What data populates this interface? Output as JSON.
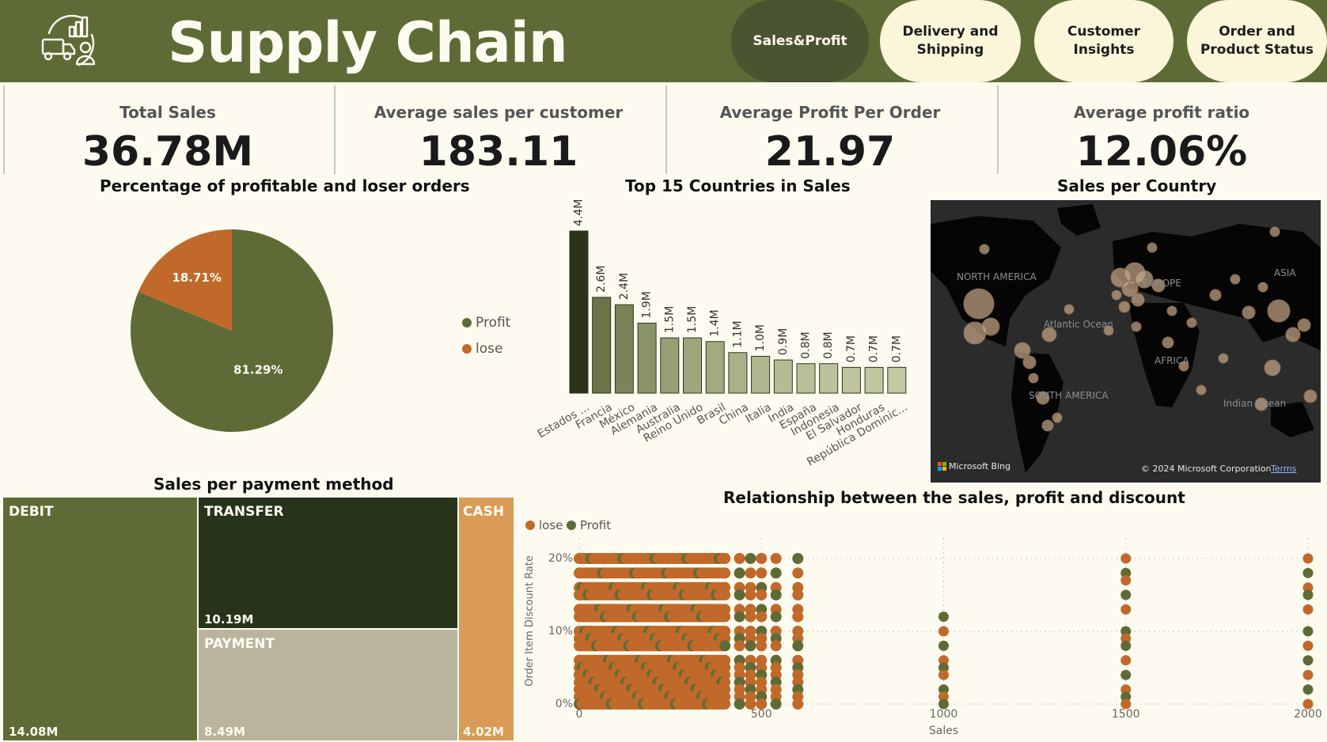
{
  "header": {
    "title": "Supply Chain",
    "nav": [
      {
        "label": "Sales&Profit",
        "active": true
      },
      {
        "label": "Delivery and\nShipping",
        "active": false
      },
      {
        "label": "Customer\nInsights",
        "active": false
      },
      {
        "label": "Order and\nProduct Status",
        "active": false
      }
    ],
    "logo_icon": "delivery-truck-chart-person-icon"
  },
  "kpis": [
    {
      "label": "Total Sales",
      "value": "36.78M"
    },
    {
      "label": "Average sales per customer",
      "value": "183.11"
    },
    {
      "label": "Average Profit Per Order",
      "value": "21.97"
    },
    {
      "label": "Average profit ratio",
      "value": "12.06%"
    }
  ],
  "colors": {
    "header_bg": "#5f6b36",
    "profit": "#5f6b36",
    "lose": "#c0692a",
    "nav_active": "#4b5430",
    "nav_inactive": "#fbf5da",
    "page_bg": "#fdfbf0"
  },
  "chart_data": [
    {
      "id": "pie",
      "type": "pie",
      "title": "Percentage of profitable and loser orders",
      "slices": [
        {
          "name": "Profit",
          "value": 81.29,
          "label": "81.29%",
          "color": "#5f6b36"
        },
        {
          "name": "lose",
          "value": 18.71,
          "label": "18.71%",
          "color": "#c0692a"
        }
      ],
      "legend": [
        "Profit",
        "lose"
      ],
      "legend_position": "right"
    },
    {
      "id": "bar",
      "type": "bar",
      "title": "Top 15 Countries in Sales",
      "categories": [
        "Estados ...",
        "Francia",
        "México",
        "Alemania",
        "Australia",
        "Reino Unido",
        "Brasil",
        "China",
        "Italia",
        "India",
        "España",
        "Indonesia",
        "El Salvador",
        "Honduras",
        "República Dominic..."
      ],
      "values": [
        4.4,
        2.6,
        2.4,
        1.9,
        1.5,
        1.5,
        1.4,
        1.1,
        1.0,
        0.9,
        0.8,
        0.8,
        0.7,
        0.7,
        0.7
      ],
      "labels": [
        "4.4M",
        "2.6M",
        "2.4M",
        "1.9M",
        "1.5M",
        "1.5M",
        "1.4M",
        "1.1M",
        "1.0M",
        "0.9M",
        "0.8M",
        "0.8M",
        "0.7M",
        "0.7M",
        "0.7M"
      ],
      "ylim": [
        0,
        4.4
      ],
      "grid": false
    },
    {
      "id": "treemap",
      "type": "treemap",
      "title": "Sales per payment method",
      "items": [
        {
          "name": "DEBIT",
          "value": 14.08,
          "label": "14.08M",
          "color": "#5f6b36"
        },
        {
          "name": "TRANSFER",
          "value": 10.19,
          "label": "10.19M",
          "color": "#27331a"
        },
        {
          "name": "PAYMENT",
          "value": 8.49,
          "label": "8.49M",
          "color": "#bab39e"
        },
        {
          "name": "CASH",
          "value": 4.02,
          "label": "4.02M",
          "color": "#d99b56"
        }
      ]
    },
    {
      "id": "scatter",
      "type": "scatter",
      "title": "Relationship between the sales, profit and discount",
      "xlabel": "Sales",
      "ylabel": "Order Item Discount Rate",
      "xlim": [
        0,
        2000
      ],
      "ylim": [
        0,
        25
      ],
      "xticks": [
        0,
        500,
        1000,
        1500,
        2000
      ],
      "xtick_labels": [
        "0",
        "500",
        "1000",
        "1500",
        "2000"
      ],
      "yticks": [
        0,
        10,
        20
      ],
      "ytick_labels": [
        "0%",
        "10%",
        "20%"
      ],
      "legend": [
        "lose",
        "Profit"
      ],
      "legend_position": "top-left",
      "grid": true
    }
  ],
  "map": {
    "title": "Sales per Country",
    "labels": [
      "NORTH AMERICA",
      "EUROPE",
      "ASIA",
      "Atlantic Ocean",
      "AFRICA",
      "SOUTH AMERICA",
      "Indian Ocean"
    ],
    "brand": "Microsoft Bing",
    "copyright": "© 2024 Microsoft Corporation",
    "terms": "Terms"
  }
}
